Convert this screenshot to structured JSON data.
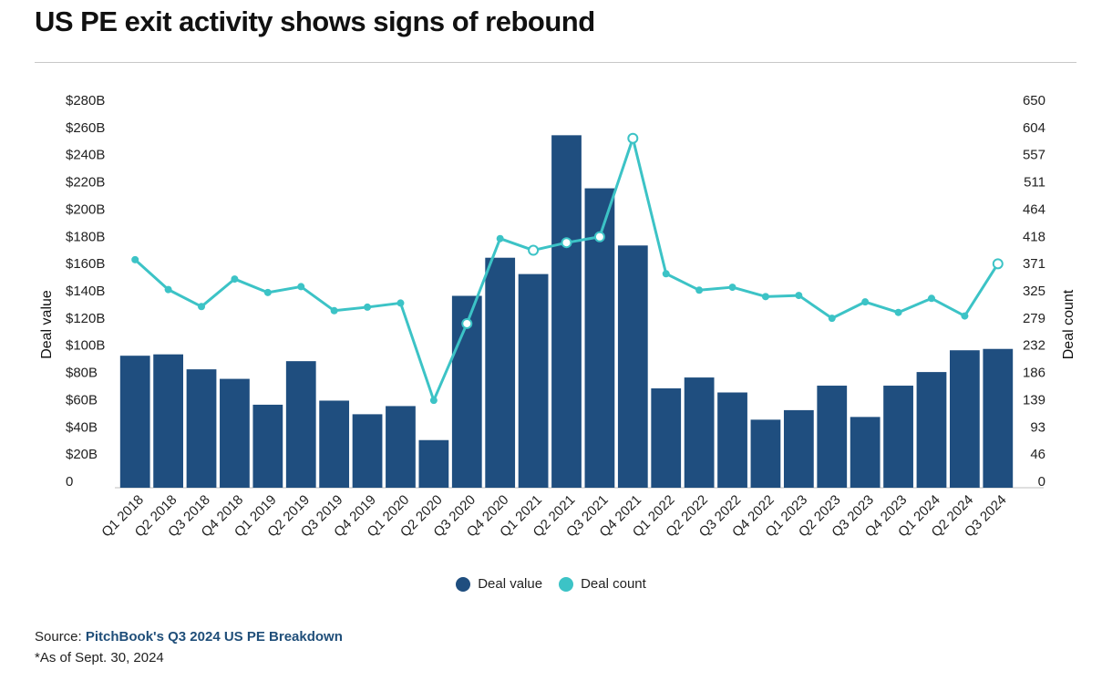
{
  "header": {
    "title": "US PE exit activity shows signs of rebound"
  },
  "footer": {
    "source_prefix": "Source: ",
    "source_link": "PitchBook's Q3 2024 US PE Breakdown",
    "note": "*As of Sept. 30, 2024"
  },
  "colors": {
    "bar": "#1f4e7f",
    "line": "#3cc3c6",
    "grid": "#d9d9d9"
  },
  "chart_data": {
    "type": "bar",
    "title": "US PE exit activity shows signs of rebound",
    "categories": [
      "Q1 2018",
      "Q2 2018",
      "Q3 2018",
      "Q4 2018",
      "Q1 2019",
      "Q2 2019",
      "Q3 2019",
      "Q4 2019",
      "Q1 2020",
      "Q2 2020",
      "Q3 2020",
      "Q4 2020",
      "Q1 2021",
      "Q2 2021",
      "Q3 2021",
      "Q4 2021",
      "Q1 2022",
      "Q2 2022",
      "Q3 2022",
      "Q4 2022",
      "Q1 2023",
      "Q2 2023",
      "Q3 2023",
      "Q4 2023",
      "Q1 2024",
      "Q2 2024",
      "Q3 2024"
    ],
    "series": [
      {
        "name": "Deal value",
        "type": "bar",
        "axis": "left",
        "values": [
          97,
          98,
          87,
          80,
          61,
          93,
          64,
          54,
          60,
          35,
          141,
          169,
          157,
          259,
          220,
          178,
          73,
          81,
          70,
          50,
          57,
          75,
          52,
          75,
          85,
          101,
          102
        ]
      },
      {
        "name": "Deal count",
        "type": "line",
        "axis": "right",
        "values": [
          389,
          338,
          309,
          356,
          333,
          343,
          302,
          308,
          315,
          149,
          280,
          425,
          405,
          418,
          428,
          596,
          365,
          337,
          342,
          326,
          328,
          289,
          317,
          299,
          323,
          293,
          382
        ],
        "highlighted_indices": [
          10,
          12,
          13,
          14,
          15,
          26
        ]
      }
    ],
    "ylabel": "Deal value",
    "y2label": "Deal count",
    "ylim": [
      0,
      280
    ],
    "y2lim": [
      0,
      650
    ],
    "y_ticks": [
      "0",
      "$20B",
      "$40B",
      "$60B",
      "$80B",
      "$100B",
      "$120B",
      "$140B",
      "$160B",
      "$180B",
      "$200B",
      "$220B",
      "$240B",
      "$260B",
      "$280B"
    ],
    "y2_ticks": [
      "0",
      "46",
      "93",
      "139",
      "186",
      "232",
      "279",
      "325",
      "371",
      "418",
      "464",
      "511",
      "557",
      "604",
      "650"
    ],
    "legend": {
      "position": "bottom",
      "items": [
        "Deal value",
        "Deal count"
      ]
    },
    "grid": false
  }
}
